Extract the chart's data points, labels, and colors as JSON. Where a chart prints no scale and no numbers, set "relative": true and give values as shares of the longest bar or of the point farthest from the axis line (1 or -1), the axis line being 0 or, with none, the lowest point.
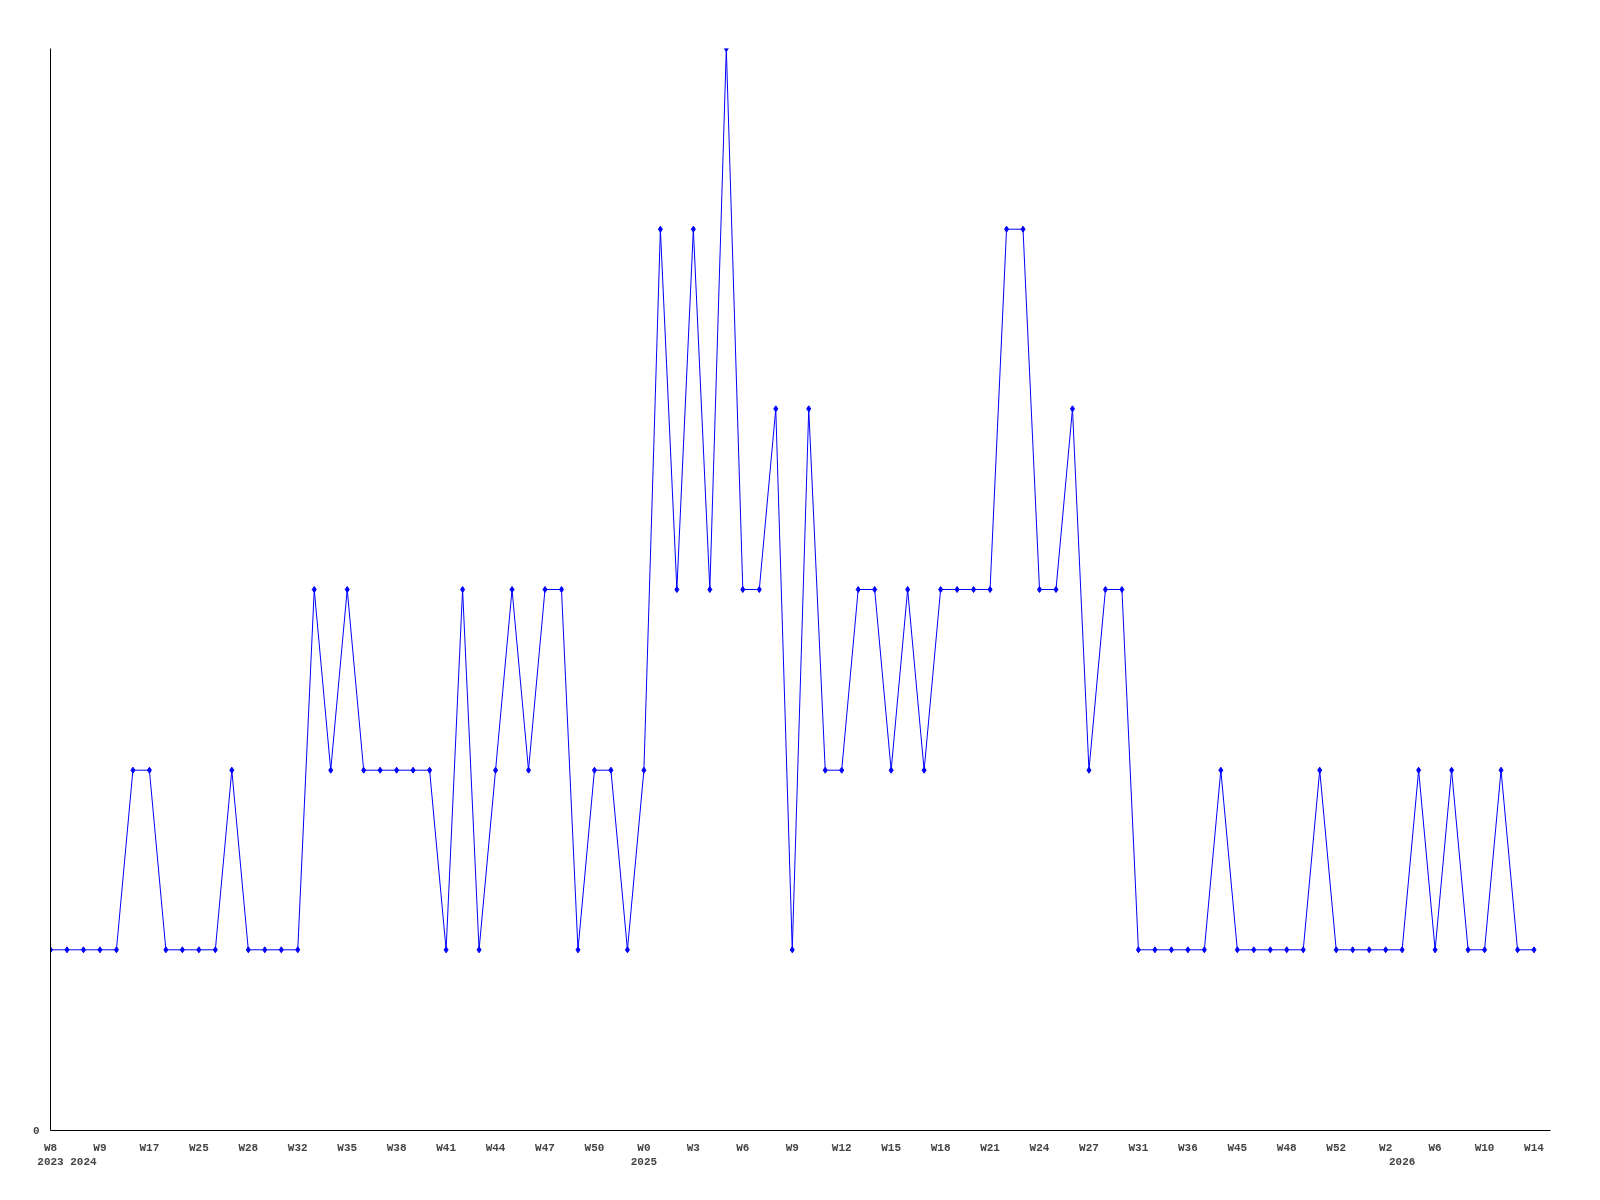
{
  "chart_data": {
    "type": "line",
    "relative": true,
    "annotations": [
      "0"
    ],
    "grid": false,
    "marker": "diamond",
    "line_style": "solid",
    "categories": [
      "W8\n2023",
      null,
      "\n2024",
      "W9",
      null,
      null,
      "W17",
      null,
      null,
      "W25",
      null,
      null,
      "W28",
      null,
      null,
      "W32",
      null,
      null,
      "W35",
      null,
      null,
      "W38",
      null,
      null,
      "W41",
      null,
      null,
      "W44",
      null,
      null,
      "W47",
      null,
      null,
      "W50",
      null,
      null,
      "W0\n2025",
      null,
      null,
      "W3",
      null,
      null,
      "W6",
      null,
      null,
      "W9",
      null,
      null,
      "W12",
      null,
      null,
      "W15",
      null,
      null,
      "W18",
      null,
      null,
      "W21",
      null,
      null,
      "W24",
      null,
      null,
      "W27",
      null,
      null,
      "W31",
      null,
      null,
      "W36",
      null,
      null,
      "W45",
      null,
      null,
      "W48",
      null,
      null,
      "W52",
      null,
      null,
      "W2",
      "\n2026",
      null,
      "W6",
      null,
      null,
      "W10",
      null,
      null,
      "W14"
    ],
    "series": [
      {
        "color": "#0000ff",
        "values": [
          0.167,
          0.167,
          0.167,
          0.167,
          0.167,
          0.333,
          0.333,
          0.167,
          0.167,
          0.167,
          0.167,
          0.333,
          0.167,
          0.167,
          0.167,
          0.167,
          0.5,
          0.333,
          0.5,
          0.333,
          0.333,
          0.333,
          0.333,
          0.333,
          0.167,
          0.5,
          0.167,
          0.333,
          0.5,
          0.333,
          0.5,
          0.5,
          0.167,
          0.333,
          0.333,
          0.167,
          0.333,
          0.833,
          0.5,
          0.833,
          0.5,
          1,
          0.5,
          0.5,
          0.667,
          0.167,
          0.667,
          0.333,
          0.333,
          0.5,
          0.5,
          0.333,
          0.5,
          0.333,
          0.5,
          0.5,
          0.5,
          0.5,
          0.833,
          0.833,
          0.5,
          0.5,
          0.667,
          0.333,
          0.5,
          0.5,
          0.167,
          0.167,
          0.167,
          0.167,
          0.167,
          0.333,
          0.167,
          0.167,
          0.167,
          0.167,
          0.167,
          0.333,
          0.167,
          0.167,
          0.167,
          0.167,
          0.167,
          0.333,
          0.167,
          0.333,
          0.167,
          0.167,
          0.333,
          0.167,
          0.167
        ]
      }
    ]
  }
}
